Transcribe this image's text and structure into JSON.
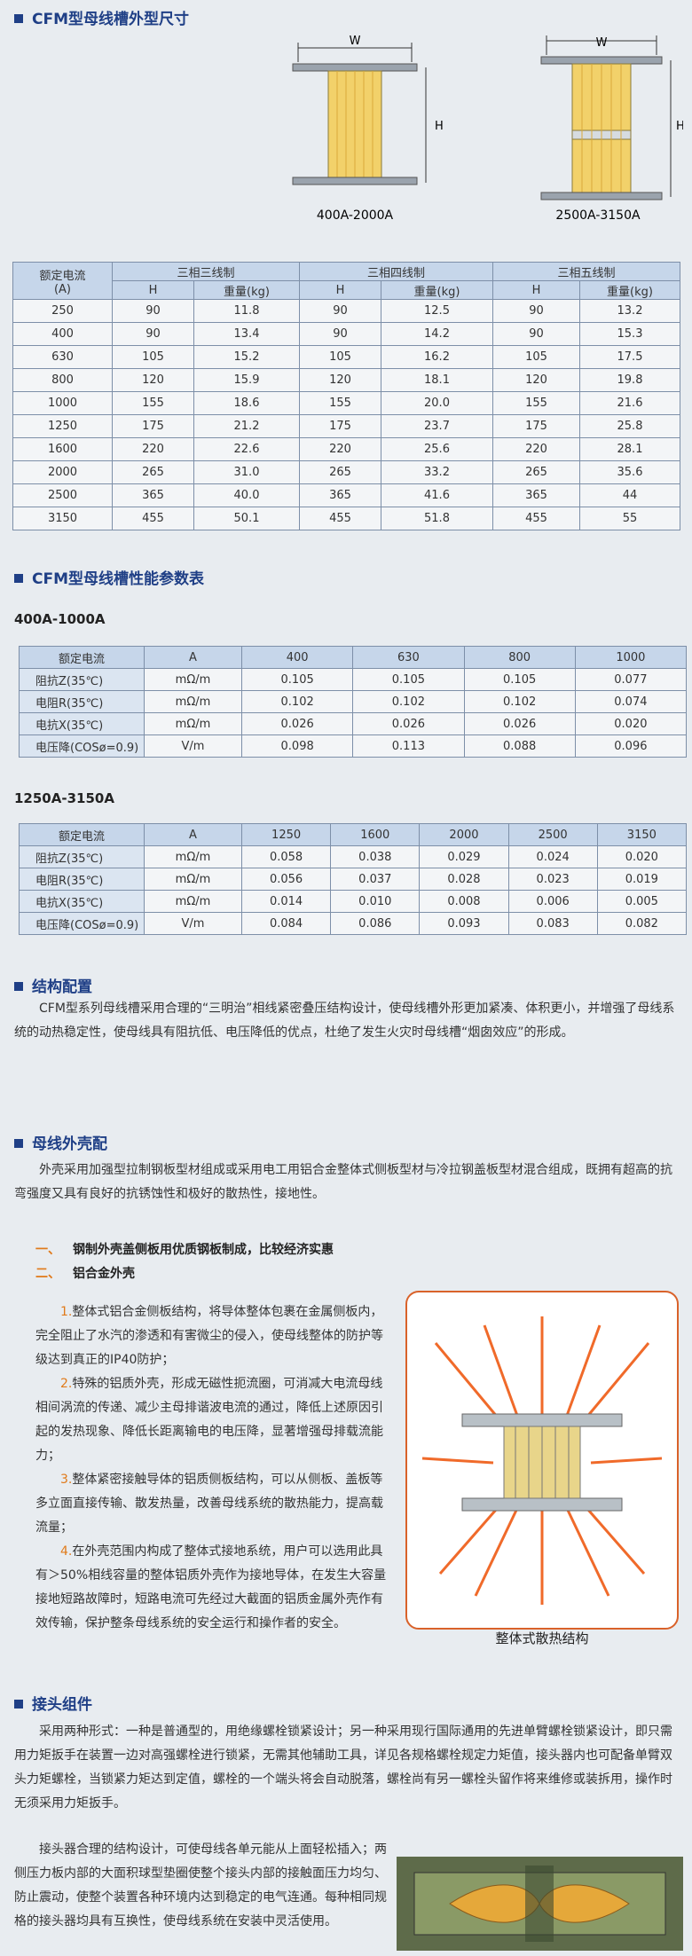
{
  "dimensions": {
    "title": "CFM型母线槽外型尺寸",
    "diagrams": [
      {
        "width_label": "W",
        "height_label": "H",
        "label": "400A-2000A"
      },
      {
        "width_label": "W",
        "height_label": "H",
        "label": "2500A-3150A"
      }
    ],
    "table": {
      "header": [
        [
          "额定电流",
          "(A)"
        ],
        "三相三线制",
        "三相四线制",
        "三相五线制"
      ],
      "subheader": [
        "H",
        "重量(kg)",
        "H",
        "重量(kg)",
        "H",
        "重量(kg)"
      ],
      "rows": [
        [
          "250",
          "90",
          "11.8",
          "90",
          "12.5",
          "90",
          "13.2"
        ],
        [
          "400",
          "90",
          "13.4",
          "90",
          "14.2",
          "90",
          "15.3"
        ],
        [
          "630",
          "105",
          "15.2",
          "105",
          "16.2",
          "105",
          "17.5"
        ],
        [
          "800",
          "120",
          "15.9",
          "120",
          "18.1",
          "120",
          "19.8"
        ],
        [
          "1000",
          "155",
          "18.6",
          "155",
          "20.0",
          "155",
          "21.6"
        ],
        [
          "1250",
          "175",
          "21.2",
          "175",
          "23.7",
          "175",
          "25.8"
        ],
        [
          "1600",
          "220",
          "22.6",
          "220",
          "25.6",
          "220",
          "28.1"
        ],
        [
          "2000",
          "265",
          "31.0",
          "265",
          "33.2",
          "265",
          "35.6"
        ],
        [
          "2500",
          "365",
          "40.0",
          "365",
          "41.6",
          "365",
          "44"
        ],
        [
          "3150",
          "455",
          "50.1",
          "455",
          "51.8",
          "455",
          "55"
        ]
      ]
    }
  },
  "performance": {
    "title": "CFM型母线槽性能参数表",
    "tables": [
      {
        "range": "400A-1000A",
        "rows": [
          [
            "额定电流",
            "A",
            "400",
            "630",
            "800",
            "1000"
          ],
          [
            "阻抗Z(35℃)",
            "mΩ/m",
            "0.105",
            "0.105",
            "0.105",
            "0.077"
          ],
          [
            "电阻R(35℃)",
            "mΩ/m",
            "0.102",
            "0.102",
            "0.102",
            "0.074"
          ],
          [
            "电抗X(35℃)",
            "mΩ/m",
            "0.026",
            "0.026",
            "0.026",
            "0.020"
          ],
          [
            "电压降(COSø=0.9)",
            "V/m",
            "0.098",
            "0.113",
            "0.088",
            "0.096"
          ]
        ]
      },
      {
        "range": "1250A-3150A",
        "rows": [
          [
            "额定电流",
            "A",
            "1250",
            "1600",
            "2000",
            "2500",
            "3150"
          ],
          [
            "阻抗Z(35℃)",
            "mΩ/m",
            "0.058",
            "0.038",
            "0.029",
            "0.024",
            "0.020"
          ],
          [
            "电阻R(35℃)",
            "mΩ/m",
            "0.056",
            "0.037",
            "0.028",
            "0.023",
            "0.019"
          ],
          [
            "电抗X(35℃)",
            "mΩ/m",
            "0.014",
            "0.010",
            "0.008",
            "0.006",
            "0.005"
          ],
          [
            "电压降(COSø=0.9)",
            "V/m",
            "0.084",
            "0.086",
            "0.093",
            "0.083",
            "0.082"
          ]
        ]
      }
    ]
  },
  "structure": {
    "title": "结构配置",
    "paragraph": "CFM型系列母线槽采用合理的“三明治”相线紧密叠压结构设计，使母线槽外形更加紧凑、体积更小，并增强了母线系统的动热稳定性，使母线具有阻抗低、电压降低的优点，杜绝了发生火灾时母线槽“烟囱效应”的形成。"
  },
  "enclosure": {
    "title": "母线外壳配",
    "intro": "外壳采用加强型拉制钢板型材组成或采用电工用铝合金整体式侧板型材与冷拉钢盖板型材混合组成，既拥有超高的抗弯强度又具有良好的抗锈蚀性和极好的散热性，接地性。",
    "options": [
      {
        "marker": "一、",
        "text": "钢制外壳盖侧板用优质钢板制成，比较经济实惠"
      },
      {
        "marker": "二、",
        "text": "铝合金外壳"
      }
    ],
    "features": [
      {
        "number": "1.",
        "text": "整体式铝合金侧板结构，将导体整体包裹在金属侧板内，完全阻止了水汽的渗透和有害微尘的侵入，使母线整体的防护等级达到真正的IP40防护；"
      },
      {
        "number": "2.",
        "text": "特殊的铝质外壳，形成无磁性扼流圈，可消减大电流母线相间涡流的传递、减少主母排谐波电流的通过，降低上述原因引起的发热现象、降低长距离输电的电压降，显著增强母排载流能力；"
      },
      {
        "number": "3.",
        "text": "整体紧密接触导体的铝质侧板结构，可以从侧板、盖板等多立面直接传输、散发热量，改善母线系统的散热能力，提高载流量；"
      },
      {
        "number": "4.",
        "text": "在外壳范围内构成了整体式接地系统，用户可以选用此具有＞50%相线容量的整体铝质外壳作为接地导体，在发生大容量接地短路故障时，短路电流可先经过大截面的铝质金属外壳作有效传输，保护整条母线系统的安全运行和操作者的安全。"
      }
    ],
    "figure_caption": "整体式散热结构"
  },
  "joint": {
    "title": "接头组件",
    "paragraphs": [
      "采用两种形式：一种是普通型的，用绝缘螺栓锁紧设计；另一种采用现行国际通用的先进单臂螺栓锁紧设计，即只需用力矩扳手在装置一边对高强螺栓进行锁紧，无需其他辅助工具，详见各规格螺栓规定力矩值，接头器内也可配备单臂双头力矩螺栓，当锁紧力矩达到定值，螺栓的一个端头将会自动脱落，螺栓尚有另一螺栓头留作将来维修或装拆用，操作时无须采用力矩扳手。",
      "接头器合理的结构设计，可使母线各单元能从上面轻松插入；两侧压力板内部的大面积球型垫圈使整个接头内部的接触面压力均匀、防止震动，使整个装置各种环境内达到稳定的电气连通。每种相同规格的接头器均具有互换性，使母线系统在安装中灵活使用。"
    ]
  }
}
